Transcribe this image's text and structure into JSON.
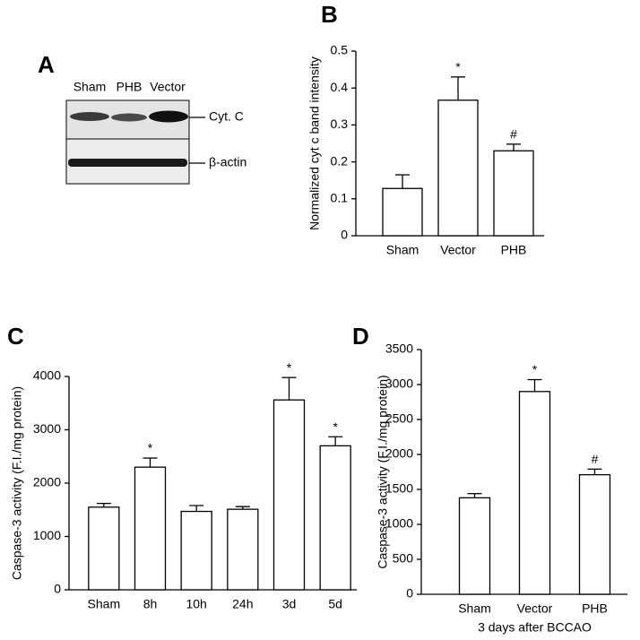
{
  "blot": {
    "panel": "A",
    "lanes": [
      "Sham",
      "PHB",
      "Vector"
    ],
    "bands": [
      "Cyt. C",
      "β-actin"
    ]
  },
  "chart_data": [
    {
      "type": "bar",
      "panel": "B",
      "y_label": "Normalized cyt c band intensity",
      "categories": [
        "Sham",
        "Vector",
        "PHB"
      ],
      "values": [
        0.128,
        0.367,
        0.23
      ],
      "errors": [
        0.037,
        0.063,
        0.018
      ],
      "annotations": [
        {
          "category": "Vector",
          "text": "*"
        },
        {
          "category": "PHB",
          "text": "#"
        }
      ],
      "color": "#ffffff",
      "ylim": [
        0,
        0.5
      ],
      "yticks": [
        0,
        0.1,
        0.2,
        0.3,
        0.4,
        0.5
      ]
    },
    {
      "type": "bar",
      "panel": "C",
      "y_label": "Caspase-3 activity (F.I./mg protein)",
      "categories": [
        "Sham",
        "8h",
        "10h",
        "24h",
        "3d",
        "5d"
      ],
      "values": [
        1550,
        2300,
        1470,
        1510,
        3560,
        2700
      ],
      "errors": [
        70,
        170,
        110,
        50,
        420,
        170
      ],
      "annotations": [
        {
          "category": "8h",
          "text": "*"
        },
        {
          "category": "3d",
          "text": "*"
        },
        {
          "category": "5d",
          "text": "*"
        }
      ],
      "color": "#ffffff",
      "ylim": [
        0,
        4000
      ],
      "yticks": [
        0,
        1000,
        2000,
        3000,
        4000
      ]
    },
    {
      "type": "bar",
      "panel": "D",
      "y_label": "Caspase-3 activity (F.I./mg protein)",
      "x_label": "3 days after BCCAO",
      "categories": [
        "Sham",
        "Vector",
        "PHB"
      ],
      "values": [
        1380,
        2900,
        1710
      ],
      "errors": [
        60,
        170,
        80
      ],
      "annotations": [
        {
          "category": "Vector",
          "text": "*"
        },
        {
          "category": "PHB",
          "text": "#"
        }
      ],
      "color": "#ffffff",
      "ylim": [
        0,
        3500
      ],
      "yticks": [
        0,
        500,
        1000,
        1500,
        2000,
        2500,
        3000,
        3500
      ]
    }
  ]
}
